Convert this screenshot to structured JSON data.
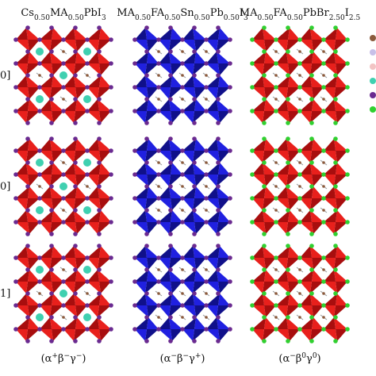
{
  "columns": [
    {
      "formula": [
        "Cs",
        "0.50",
        "MA",
        "0.50",
        "PbI",
        "3"
      ],
      "tilt": [
        "(α",
        "+",
        "β",
        "−",
        "γ",
        "−",
        ")"
      ]
    },
    {
      "formula": [
        "MA",
        "0.50",
        "FA",
        "0.50",
        "Sn",
        "0.50",
        "Pb",
        "0.50",
        "I",
        "3"
      ],
      "tilt": [
        "(α",
        "−",
        "β",
        "−",
        "γ",
        "+",
        ")"
      ]
    },
    {
      "formula": [
        "MA",
        "0.50",
        "FA",
        "0.50",
        "PbBr",
        "2.50",
        "I",
        "2.5"
      ],
      "tilt": [
        "(α",
        "−",
        "β",
        "0",
        "γ",
        "0",
        ")"
      ]
    }
  ],
  "row_labels": [
    "0]",
    "0]",
    "1]"
  ]
}
